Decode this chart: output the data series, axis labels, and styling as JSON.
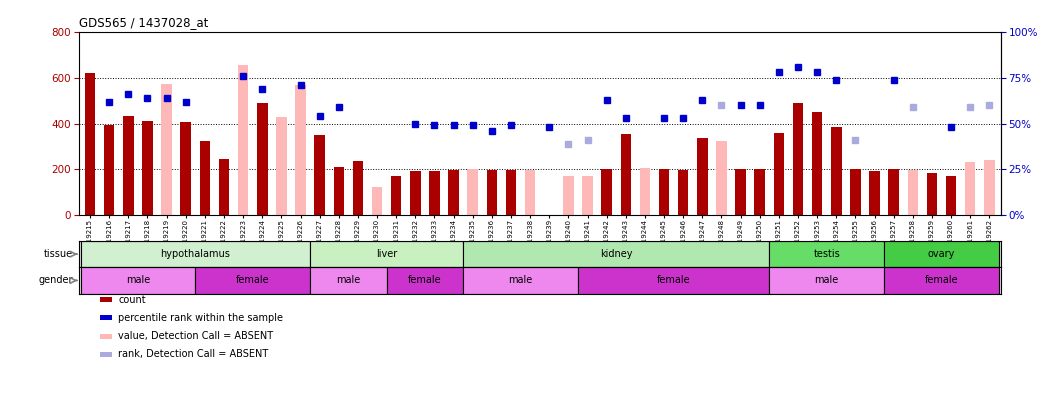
{
  "title": "GDS565 / 1437028_at",
  "samples": [
    "GSM19215",
    "GSM19216",
    "GSM19217",
    "GSM19218",
    "GSM19219",
    "GSM19220",
    "GSM19221",
    "GSM19222",
    "GSM19223",
    "GSM19224",
    "GSM19225",
    "GSM19226",
    "GSM19227",
    "GSM19228",
    "GSM19229",
    "GSM19230",
    "GSM19231",
    "GSM19232",
    "GSM19233",
    "GSM19234",
    "GSM19235",
    "GSM19236",
    "GSM19237",
    "GSM19238",
    "GSM19239",
    "GSM19240",
    "GSM19241",
    "GSM19242",
    "GSM19243",
    "GSM19244",
    "GSM19245",
    "GSM19246",
    "GSM19247",
    "GSM19248",
    "GSM19249",
    "GSM19250",
    "GSM19251",
    "GSM19252",
    "GSM19253",
    "GSM19254",
    "GSM19255",
    "GSM19256",
    "GSM19257",
    "GSM19258",
    "GSM19259",
    "GSM19260",
    "GSM19261",
    "GSM19262"
  ],
  "bar_values": [
    620,
    395,
    435,
    410,
    null,
    405,
    325,
    245,
    null,
    490,
    null,
    null,
    350,
    210,
    235,
    null,
    170,
    190,
    190,
    195,
    null,
    195,
    195,
    null,
    null,
    null,
    null,
    200,
    355,
    null,
    200,
    195,
    335,
    null,
    200,
    200,
    360,
    490,
    450,
    385,
    200,
    190,
    200,
    null,
    185,
    170,
    null,
    null
  ],
  "bar_absent_values": [
    null,
    null,
    null,
    null,
    575,
    null,
    null,
    null,
    655,
    null,
    430,
    570,
    null,
    null,
    null,
    120,
    null,
    null,
    null,
    null,
    200,
    null,
    null,
    195,
    null,
    170,
    170,
    null,
    null,
    205,
    null,
    null,
    null,
    325,
    null,
    null,
    null,
    null,
    null,
    null,
    null,
    null,
    null,
    195,
    null,
    null,
    230,
    240
  ],
  "rank_pct": [
    null,
    62,
    66,
    64,
    64,
    62,
    null,
    null,
    76,
    69,
    null,
    71,
    54,
    59,
    null,
    null,
    null,
    50,
    49,
    49,
    49,
    46,
    49,
    null,
    48,
    null,
    null,
    63,
    53,
    null,
    53,
    53,
    63,
    null,
    60,
    60,
    78,
    81,
    78,
    74,
    null,
    null,
    74,
    null,
    null,
    48,
    null,
    null
  ],
  "rank_absent_pct": [
    null,
    null,
    null,
    null,
    null,
    null,
    null,
    null,
    null,
    null,
    null,
    null,
    null,
    null,
    null,
    null,
    null,
    null,
    null,
    null,
    null,
    null,
    null,
    null,
    null,
    39,
    41,
    null,
    null,
    null,
    null,
    null,
    null,
    60,
    null,
    null,
    null,
    null,
    null,
    null,
    41,
    null,
    null,
    59,
    null,
    null,
    59,
    60
  ],
  "tissues": [
    {
      "name": "hypothalamus",
      "start": 0,
      "end": 12,
      "color": "#d0f0d0"
    },
    {
      "name": "liver",
      "start": 12,
      "end": 20,
      "color": "#c8f0c0"
    },
    {
      "name": "kidney",
      "start": 20,
      "end": 36,
      "color": "#b0e8b0"
    },
    {
      "name": "testis",
      "start": 36,
      "end": 42,
      "color": "#66dd66"
    },
    {
      "name": "ovary",
      "start": 42,
      "end": 48,
      "color": "#44cc44"
    }
  ],
  "genders": [
    {
      "name": "male",
      "start": 0,
      "end": 6
    },
    {
      "name": "female",
      "start": 6,
      "end": 12
    },
    {
      "name": "male",
      "start": 12,
      "end": 16
    },
    {
      "name": "female",
      "start": 16,
      "end": 20
    },
    {
      "name": "male",
      "start": 20,
      "end": 26
    },
    {
      "name": "female",
      "start": 26,
      "end": 36
    },
    {
      "name": "male",
      "start": 36,
      "end": 42
    },
    {
      "name": "female",
      "start": 42,
      "end": 48
    }
  ],
  "gender_colors": {
    "male": "#ee88ee",
    "female": "#cc33cc"
  },
  "ylim_left": [
    0,
    800
  ],
  "ylim_right": [
    0,
    100
  ],
  "yticks_left": [
    0,
    200,
    400,
    600,
    800
  ],
  "yticks_right": [
    0,
    25,
    50,
    75,
    100
  ],
  "bar_color": "#aa0000",
  "bar_absent_color": "#ffb8b8",
  "rank_color": "#0000cc",
  "rank_absent_color": "#aaaadd",
  "grid_yticks": [
    200,
    400,
    600
  ],
  "bg_color": "white"
}
